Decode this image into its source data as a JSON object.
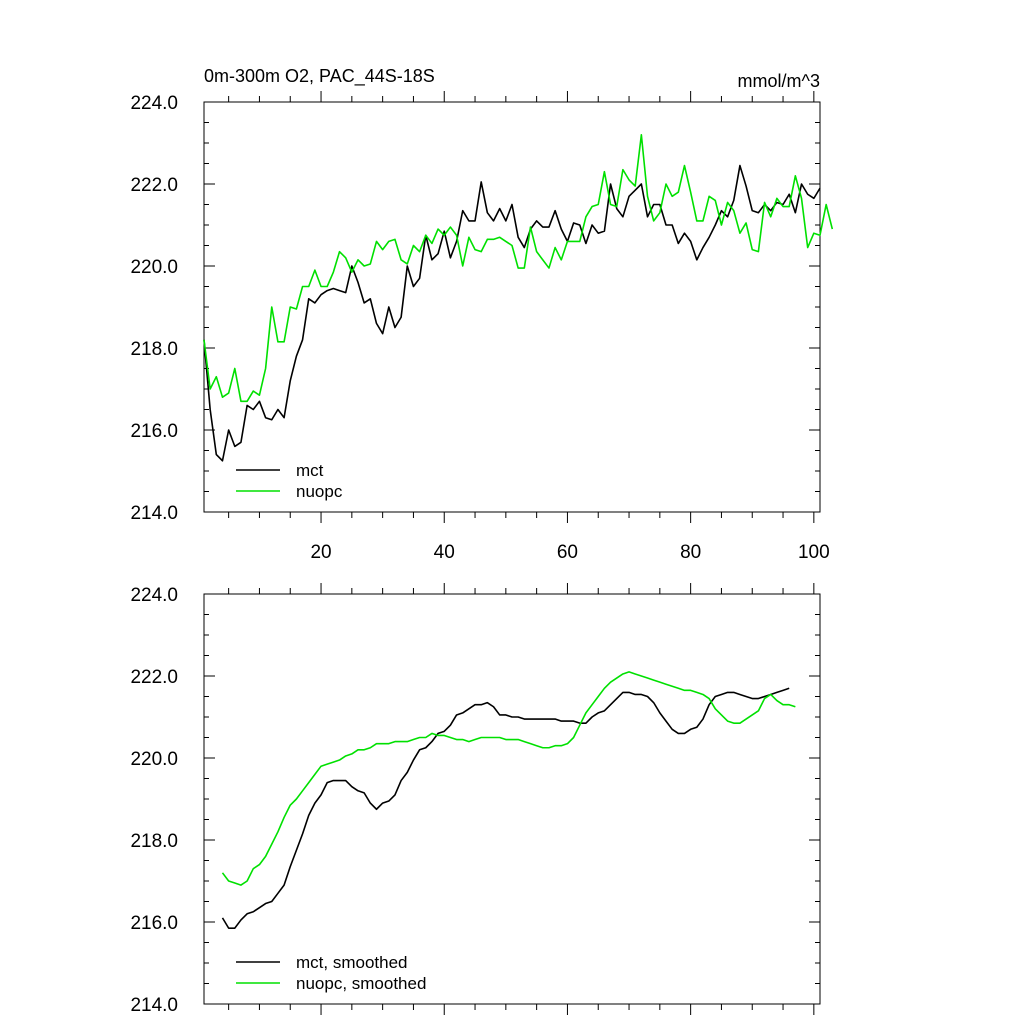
{
  "chart_data": [
    {
      "type": "line",
      "title": "0m-300m O2, PAC_44S-18S",
      "units": "mmol/m^3",
      "xlim": [
        1,
        101
      ],
      "ylim": [
        214,
        224
      ],
      "x_ticks": [
        20,
        40,
        60,
        80,
        100
      ],
      "y_ticks": [
        214.0,
        216.0,
        218.0,
        220.0,
        222.0,
        224.0
      ],
      "y_tick_labels": [
        "214.0",
        "216.0",
        "218.0",
        "220.0",
        "222.0",
        "224.0"
      ],
      "x_tick_labels": [
        "20",
        "40",
        "60",
        "80",
        "100"
      ],
      "legend": "bottom-left",
      "series": [
        {
          "name": "mct",
          "color": "#000000",
          "x_start": 1,
          "values": [
            218.2,
            216.5,
            215.4,
            215.25,
            216.0,
            215.6,
            215.7,
            216.6,
            216.5,
            216.7,
            216.3,
            216.25,
            216.5,
            216.3,
            217.2,
            217.8,
            218.2,
            219.2,
            219.1,
            219.3,
            219.4,
            219.45,
            219.4,
            219.35,
            220.0,
            219.6,
            219.1,
            219.2,
            218.6,
            218.35,
            219.0,
            218.5,
            218.75,
            220.0,
            219.5,
            219.7,
            220.75,
            220.15,
            220.3,
            220.85,
            220.2,
            220.6,
            221.35,
            221.1,
            221.1,
            222.05,
            221.3,
            221.1,
            221.4,
            221.1,
            221.5,
            220.7,
            220.45,
            220.9,
            221.1,
            220.95,
            220.95,
            221.35,
            220.9,
            220.6,
            221.05,
            221.0,
            220.55,
            221.0,
            220.8,
            220.85,
            222.0,
            221.4,
            221.2,
            221.7,
            221.85,
            222.0,
            221.2,
            221.5,
            221.5,
            221.0,
            221.0,
            220.55,
            220.8,
            220.6,
            220.15,
            220.45,
            220.7,
            221.0,
            221.35,
            221.2,
            221.6,
            222.45,
            221.95,
            221.35,
            221.3,
            221.5,
            221.35,
            221.55,
            221.5,
            221.75,
            221.3,
            222.0,
            221.75,
            221.65,
            221.9
          ]
        },
        {
          "name": "nuopc",
          "color": "#00e000",
          "x_start": 1,
          "values": [
            218.2,
            217.0,
            217.3,
            216.8,
            216.9,
            217.5,
            216.7,
            216.7,
            216.95,
            216.85,
            217.5,
            219.0,
            218.15,
            218.15,
            219.0,
            218.95,
            219.5,
            219.5,
            219.9,
            219.5,
            219.5,
            219.85,
            220.35,
            220.2,
            219.85,
            220.15,
            220.0,
            220.05,
            220.6,
            220.4,
            220.6,
            220.65,
            220.15,
            220.05,
            220.5,
            220.35,
            220.75,
            220.55,
            220.9,
            220.75,
            220.95,
            220.75,
            220.0,
            220.7,
            220.4,
            220.35,
            220.65,
            220.65,
            220.7,
            220.6,
            220.5,
            219.95,
            219.95,
            220.95,
            220.35,
            220.15,
            219.95,
            220.45,
            220.15,
            220.6,
            220.6,
            220.6,
            221.2,
            221.45,
            221.5,
            222.3,
            221.5,
            221.45,
            222.35,
            222.1,
            221.95,
            223.2,
            221.7,
            221.1,
            221.3,
            222.0,
            221.7,
            221.8,
            222.45,
            221.8,
            221.1,
            221.1,
            221.7,
            221.6,
            221.0,
            221.55,
            221.35,
            220.8,
            221.05,
            220.4,
            220.35,
            221.55,
            221.2,
            221.65,
            221.45,
            221.45,
            222.2,
            221.65,
            220.45,
            220.8,
            220.75,
            221.5,
            220.9
          ]
        }
      ]
    },
    {
      "type": "line",
      "xlim": [
        1,
        101
      ],
      "ylim": [
        214,
        224
      ],
      "y_ticks": [
        214.0,
        216.0,
        218.0,
        220.0,
        222.0,
        224.0
      ],
      "y_tick_labels": [
        "214.0",
        "216.0",
        "218.0",
        "220.0",
        "222.0",
        "224.0"
      ],
      "legend": "bottom-left",
      "series": [
        {
          "name": "mct, smoothed",
          "color": "#000000",
          "x_start": 4,
          "values": [
            216.1,
            215.85,
            215.85,
            216.05,
            216.2,
            216.25,
            216.35,
            216.45,
            216.5,
            216.7,
            216.9,
            217.35,
            217.75,
            218.15,
            218.6,
            218.9,
            219.1,
            219.4,
            219.45,
            219.45,
            219.45,
            219.3,
            219.2,
            219.15,
            218.9,
            218.75,
            218.9,
            218.95,
            219.1,
            219.45,
            219.65,
            219.95,
            220.2,
            220.25,
            220.4,
            220.6,
            220.65,
            220.8,
            221.05,
            221.1,
            221.2,
            221.3,
            221.3,
            221.35,
            221.25,
            221.05,
            221.05,
            221.0,
            221.0,
            220.95,
            220.95,
            220.95,
            220.95,
            220.95,
            220.95,
            220.9,
            220.9,
            220.9,
            220.85,
            220.85,
            221.0,
            221.1,
            221.15,
            221.3,
            221.45,
            221.6,
            221.6,
            221.55,
            221.55,
            221.5,
            221.35,
            221.1,
            220.9,
            220.7,
            220.6,
            220.6,
            220.7,
            220.75,
            220.95,
            221.3,
            221.5,
            221.55,
            221.6,
            221.6,
            221.55,
            221.5,
            221.45,
            221.45,
            221.5,
            221.55,
            221.6,
            221.65,
            221.7
          ]
        },
        {
          "name": "nuopc, smoothed",
          "color": "#00e000",
          "x_start": 4,
          "values": [
            217.2,
            217.0,
            216.95,
            216.9,
            217.0,
            217.3,
            217.4,
            217.6,
            217.9,
            218.2,
            218.55,
            218.85,
            219.0,
            219.2,
            219.4,
            219.6,
            219.8,
            219.85,
            219.9,
            219.95,
            220.05,
            220.1,
            220.2,
            220.2,
            220.25,
            220.35,
            220.35,
            220.35,
            220.4,
            220.4,
            220.4,
            220.45,
            220.5,
            220.5,
            220.6,
            220.55,
            220.55,
            220.5,
            220.45,
            220.45,
            220.4,
            220.45,
            220.5,
            220.5,
            220.5,
            220.5,
            220.45,
            220.45,
            220.45,
            220.4,
            220.35,
            220.3,
            220.25,
            220.25,
            220.3,
            220.3,
            220.35,
            220.5,
            220.8,
            221.1,
            221.3,
            221.5,
            221.7,
            221.85,
            221.95,
            222.05,
            222.1,
            222.05,
            222.0,
            221.95,
            221.9,
            221.85,
            221.8,
            221.75,
            221.7,
            221.65,
            221.65,
            221.6,
            221.55,
            221.45,
            221.2,
            221.05,
            220.9,
            220.85,
            220.85,
            220.95,
            221.05,
            221.15,
            221.45,
            221.55,
            221.4,
            221.3,
            221.3,
            221.25
          ]
        }
      ]
    }
  ]
}
